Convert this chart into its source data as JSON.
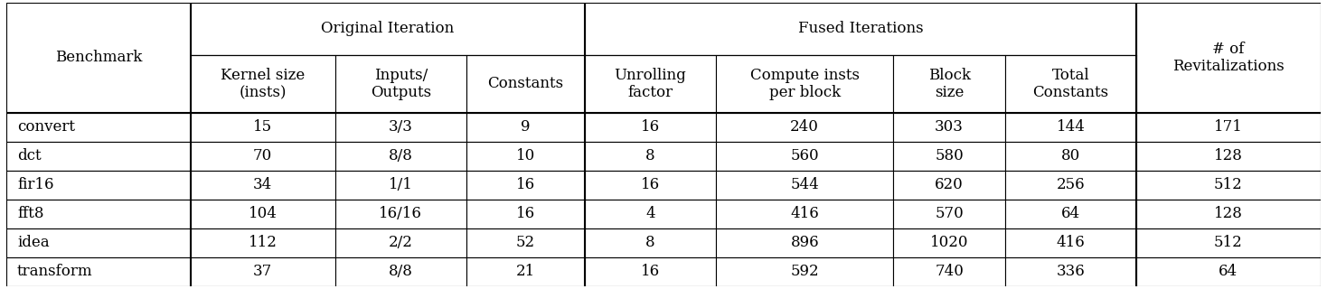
{
  "sub_headers": [
    "Kernel size\n(insts)",
    "Inputs/\nOutputs",
    "Constants",
    "Unrolling\nfactor",
    "Compute insts\nper block",
    "Block\nsize",
    "Total\nConstants"
  ],
  "rows": [
    [
      "convert",
      "15",
      "3/3",
      "9",
      "16",
      "240",
      "303",
      "144",
      "171"
    ],
    [
      "dct",
      "70",
      "8/8",
      "10",
      "8",
      "560",
      "580",
      "80",
      "128"
    ],
    [
      "fir16",
      "34",
      "1/1",
      "16",
      "16",
      "544",
      "620",
      "256",
      "512"
    ],
    [
      "fft8",
      "104",
      "16/16",
      "16",
      "4",
      "416",
      "570",
      "64",
      "128"
    ],
    [
      "idea",
      "112",
      "2/2",
      "52",
      "8",
      "896",
      "1020",
      "416",
      "512"
    ],
    [
      "transform",
      "37",
      "8/8",
      "21",
      "16",
      "592",
      "740",
      "336",
      "64"
    ]
  ],
  "col_widths": [
    1.4,
    1.1,
    1.0,
    0.9,
    1.0,
    1.35,
    0.85,
    1.0,
    1.4
  ],
  "background": "#ffffff",
  "font_size": 12,
  "header_font_size": 12,
  "lw_thin": 0.8,
  "lw_thick": 1.5
}
